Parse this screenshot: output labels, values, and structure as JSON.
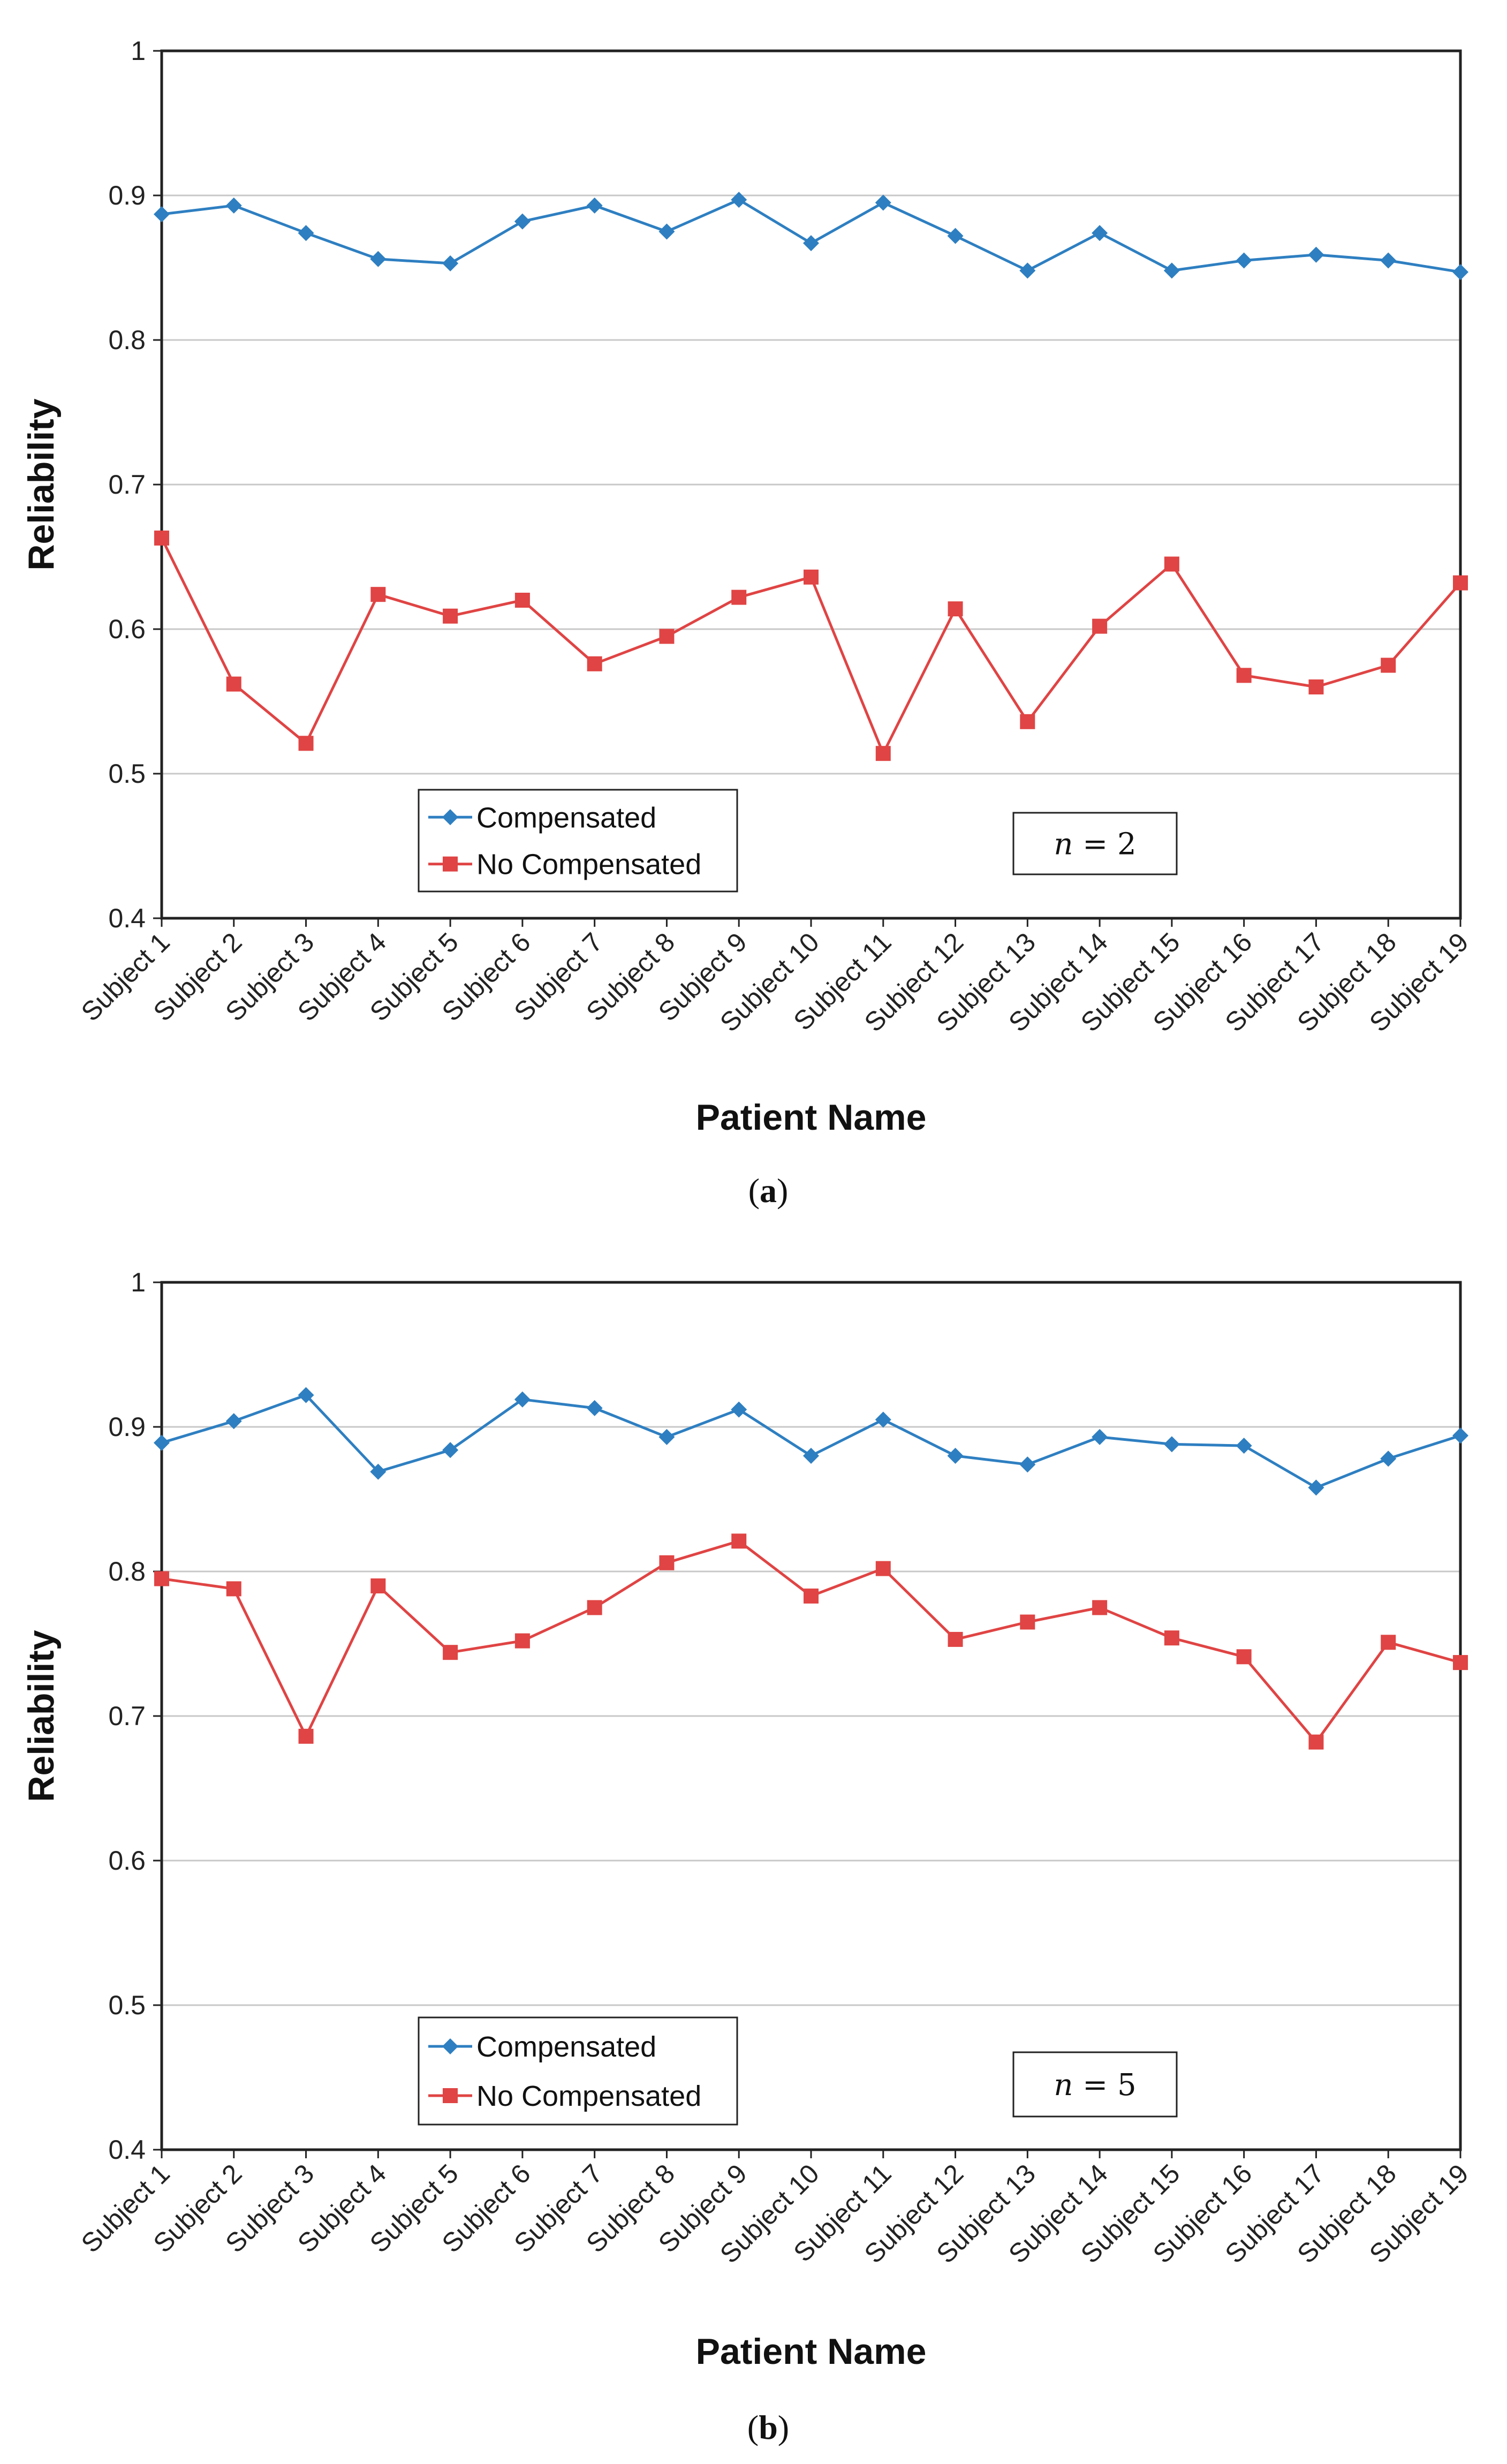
{
  "chart_data": [
    {
      "type": "line",
      "caption": {
        "open": "(",
        "letter": "a",
        "close": ")"
      },
      "annotation": {
        "italic": "n",
        "rest": " = 2"
      },
      "xlabel": "Patient Name",
      "ylabel": "Reliability",
      "ylim": [
        0.4,
        1.0
      ],
      "yticks": [
        "0.4",
        "0.5",
        "0.6",
        "0.7",
        "0.8",
        "0.9",
        "1"
      ],
      "grid": true,
      "legend_position": "bottom-left",
      "categories": [
        "Subject 1",
        "Subject 2",
        "Subject 3",
        "Subject 4",
        "Subject 5",
        "Subject 6",
        "Subject 7",
        "Subject 8",
        "Subject 9",
        "Subject 10",
        "Subject 11",
        "Subject 12",
        "Subject 13",
        "Subject 14",
        "Subject 15",
        "Subject 16",
        "Subject 17",
        "Subject 18",
        "Subject 19"
      ],
      "series": [
        {
          "name": "Compensated",
          "color": "#2E7FC1",
          "marker": "diamond",
          "values": [
            0.887,
            0.893,
            0.874,
            0.856,
            0.853,
            0.882,
            0.893,
            0.875,
            0.897,
            0.867,
            0.895,
            0.872,
            0.848,
            0.874,
            0.848,
            0.855,
            0.859,
            0.855,
            0.847
          ]
        },
        {
          "name": "No Compensated",
          "color": "#E04444",
          "marker": "square",
          "values": [
            0.663,
            0.562,
            0.521,
            0.624,
            0.609,
            0.62,
            0.576,
            0.595,
            0.622,
            0.636,
            0.514,
            0.614,
            0.536,
            0.602,
            0.645,
            0.568,
            0.56,
            0.575,
            0.632
          ]
        }
      ]
    },
    {
      "type": "line",
      "caption": {
        "open": "(",
        "letter": "b",
        "close": ")"
      },
      "annotation": {
        "italic": "n",
        "rest": " = 5"
      },
      "xlabel": "Patient Name",
      "ylabel": "Reliability",
      "ylim": [
        0.4,
        1.0
      ],
      "yticks": [
        "0.4",
        "0.5",
        "0.6",
        "0.7",
        "0.8",
        "0.9",
        "1"
      ],
      "grid": true,
      "legend_position": "bottom-left",
      "categories": [
        "Subject 1",
        "Subject 2",
        "Subject 3",
        "Subject 4",
        "Subject 5",
        "Subject 6",
        "Subject 7",
        "Subject 8",
        "Subject 9",
        "Subject 10",
        "Subject 11",
        "Subject 12",
        "Subject 13",
        "Subject 14",
        "Subject 15",
        "Subject 16",
        "Subject 17",
        "Subject 18",
        "Subject 19"
      ],
      "series": [
        {
          "name": "Compensated",
          "color": "#2E7FC1",
          "marker": "diamond",
          "values": [
            0.889,
            0.904,
            0.922,
            0.869,
            0.884,
            0.919,
            0.913,
            0.893,
            0.912,
            0.88,
            0.905,
            0.88,
            0.874,
            0.893,
            0.888,
            0.887,
            0.858,
            0.878,
            0.894
          ]
        },
        {
          "name": "No Compensated",
          "color": "#E04444",
          "marker": "square",
          "values": [
            0.795,
            0.788,
            0.686,
            0.79,
            0.744,
            0.752,
            0.775,
            0.806,
            0.821,
            0.783,
            0.802,
            0.753,
            0.765,
            0.775,
            0.754,
            0.741,
            0.682,
            0.751,
            0.737
          ]
        }
      ]
    }
  ]
}
